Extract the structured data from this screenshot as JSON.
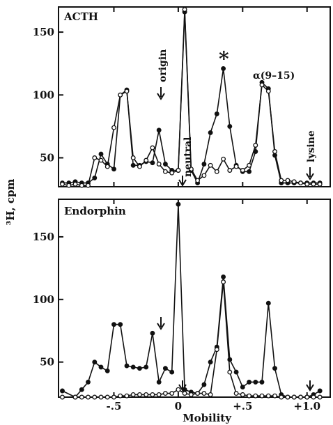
{
  "chart_data": {
    "type": "line",
    "xlabel": "Mobility",
    "ylabel": "³H, cpm",
    "x_ticks": [
      -0.5,
      0,
      0.5,
      1.0
    ],
    "x_tick_labels": [
      "-.5",
      "0",
      "+.5",
      "+1.0"
    ],
    "xlim": [
      -0.93,
      1.18
    ],
    "panels": [
      {
        "title": "ACTH",
        "ylim": [
          27,
          170
        ],
        "y_ticks": [
          50,
          100,
          150
        ],
        "y_tick_labels": [
          "50",
          "100",
          "150"
        ],
        "annotations": {
          "origin": "origin",
          "neutral": "neutral",
          "star": "*",
          "alpha": "α(9–15)",
          "lysine": "lysine"
        },
        "series": [
          {
            "marker": "filled",
            "x": [
              -0.9,
              -0.85,
              -0.8,
              -0.75,
              -0.7,
              -0.65,
              -0.6,
              -0.55,
              -0.5,
              -0.45,
              -0.4,
              -0.35,
              -0.3,
              -0.25,
              -0.2,
              -0.15,
              -0.1,
              -0.05,
              0.0,
              0.05,
              0.1,
              0.15,
              0.2,
              0.25,
              0.3,
              0.35,
              0.4,
              0.45,
              0.5,
              0.55,
              0.6,
              0.65,
              0.7,
              0.75,
              0.8,
              0.85,
              0.9,
              0.95,
              1.0,
              1.05,
              1.1
            ],
            "values": [
              30,
              30,
              31,
              30,
              30,
              34,
              53,
              45,
              41,
              100,
              104,
              44,
              44,
              47,
              46,
              72,
              45,
              40,
              40,
              166,
              40,
              30,
              45,
              70,
              85,
              121,
              75,
              44,
              39,
              39,
              55,
              110,
              105,
              52,
              30,
              30,
              30,
              30,
              30,
              30,
              30
            ]
          },
          {
            "marker": "open",
            "x": [
              -0.9,
              -0.85,
              -0.8,
              -0.75,
              -0.7,
              -0.65,
              -0.6,
              -0.55,
              -0.5,
              -0.45,
              -0.4,
              -0.35,
              -0.3,
              -0.25,
              -0.2,
              -0.15,
              -0.1,
              -0.05,
              0.0,
              0.05,
              0.1,
              0.15,
              0.2,
              0.25,
              0.3,
              0.35,
              0.4,
              0.45,
              0.5,
              0.55,
              0.6,
              0.65,
              0.7,
              0.75,
              0.8,
              0.85,
              0.9,
              0.95,
              1.0,
              1.05,
              1.1
            ],
            "values": [
              29,
              28,
              29,
              28,
              28,
              50,
              48,
              43,
              74,
              100,
              103,
              50,
              43,
              48,
              58,
              45,
              39,
              38,
              40,
              168,
              41,
              32,
              36,
              44,
              39,
              49,
              40,
              43,
              40,
              44,
              60,
              108,
              103,
              55,
              32,
              32,
              31,
              30,
              29,
              29,
              29
            ]
          }
        ]
      },
      {
        "title": "Endorphin",
        "ylim": [
          22,
          180
        ],
        "y_ticks": [
          50,
          100,
          150
        ],
        "y_tick_labels": [
          "50",
          "100",
          "150"
        ],
        "series": [
          {
            "marker": "filled",
            "x": [
              -0.9,
              -0.8,
              -0.75,
              -0.7,
              -0.65,
              -0.6,
              -0.55,
              -0.5,
              -0.45,
              -0.4,
              -0.35,
              -0.3,
              -0.25,
              -0.2,
              -0.15,
              -0.1,
              -0.05,
              0.0,
              0.05,
              0.1,
              0.15,
              0.2,
              0.25,
              0.3,
              0.35,
              0.4,
              0.45,
              0.5,
              0.55,
              0.6,
              0.65,
              0.7,
              0.75,
              0.8,
              0.85,
              0.9,
              0.95,
              1.0,
              1.05,
              1.1
            ],
            "values": [
              27,
              22,
              28,
              34,
              50,
              46,
              43,
              80,
              80,
              47,
              46,
              45,
              46,
              73,
              34,
              45,
              42,
              176,
              28,
              26,
              25,
              32,
              50,
              62,
              118,
              52,
              42,
              30,
              34,
              34,
              34,
              97,
              45,
              24,
              22,
              22,
              22,
              22,
              24,
              27
            ]
          },
          {
            "marker": "open",
            "x": [
              -0.9,
              -0.8,
              -0.75,
              -0.7,
              -0.65,
              -0.6,
              -0.55,
              -0.5,
              -0.45,
              -0.4,
              -0.35,
              -0.3,
              -0.25,
              -0.2,
              -0.15,
              -0.1,
              -0.05,
              0.0,
              0.05,
              0.1,
              0.15,
              0.2,
              0.25,
              0.3,
              0.35,
              0.4,
              0.45,
              0.5,
              0.55,
              0.6,
              0.65,
              0.7,
              0.75,
              0.8,
              0.85,
              0.9,
              0.95,
              1.0,
              1.05,
              1.1
            ],
            "values": [
              22,
              22,
              22,
              22,
              22,
              22,
              22,
              22,
              23,
              23,
              24,
              24,
              24,
              24,
              24,
              25,
              25,
              28,
              25,
              24,
              25,
              25,
              24,
              60,
              114,
              42,
              25,
              24,
              23,
              23,
              23,
              23,
              23,
              22,
              22,
              22,
              22,
              22,
              22,
              22
            ]
          }
        ]
      }
    ]
  }
}
